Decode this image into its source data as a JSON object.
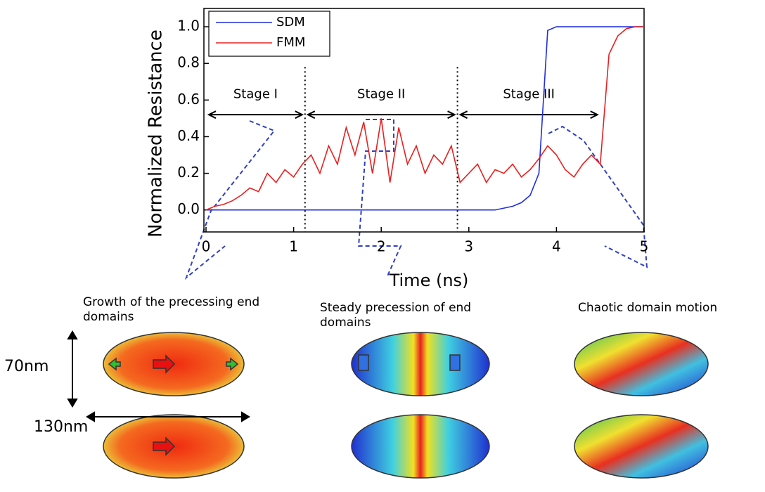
{
  "chart_data": {
    "type": "line",
    "y_label": "Normalized Resistance",
    "x_label": "Time (ns)",
    "x": [
      0,
      0.1,
      0.2,
      0.3,
      0.4,
      0.5,
      0.6,
      0.7,
      0.8,
      0.9,
      1.0,
      1.1,
      1.2,
      1.3,
      1.4,
      1.5,
      1.6,
      1.7,
      1.8,
      1.9,
      2.0,
      2.1,
      2.2,
      2.3,
      2.4,
      2.5,
      2.6,
      2.7,
      2.8,
      2.9,
      3.0,
      3.1,
      3.2,
      3.3,
      3.4,
      3.5,
      3.6,
      3.7,
      3.8,
      3.9,
      4.0,
      4.1,
      4.2,
      4.3,
      4.4,
      4.5,
      4.6,
      4.7,
      4.8,
      4.9,
      5.0
    ],
    "series": [
      {
        "name": "SDM",
        "color": "#1f2fe0",
        "values": [
          0,
          0,
          0,
          0,
          0,
          0,
          0,
          0,
          0,
          0,
          0,
          0,
          0,
          0,
          0,
          0,
          0,
          0,
          0,
          0,
          0,
          0,
          0,
          0,
          0,
          0,
          0,
          0,
          0,
          0,
          0,
          0,
          0,
          0,
          0.01,
          0.02,
          0.04,
          0.08,
          0.2,
          0.98,
          1.0,
          1.0,
          1.0,
          1.0,
          1.0,
          1.0,
          1.0,
          1.0,
          1.0,
          1.0,
          1.0
        ]
      },
      {
        "name": "FMM",
        "color": "#e82020",
        "values": [
          0,
          0.02,
          0.03,
          0.05,
          0.08,
          0.12,
          0.1,
          0.2,
          0.15,
          0.22,
          0.18,
          0.25,
          0.3,
          0.2,
          0.35,
          0.25,
          0.45,
          0.3,
          0.48,
          0.2,
          0.5,
          0.15,
          0.45,
          0.25,
          0.35,
          0.2,
          0.3,
          0.25,
          0.35,
          0.15,
          0.2,
          0.25,
          0.15,
          0.22,
          0.2,
          0.25,
          0.18,
          0.22,
          0.28,
          0.35,
          0.3,
          0.22,
          0.18,
          0.25,
          0.3,
          0.25,
          0.85,
          0.95,
          0.99,
          1.0,
          1.0
        ]
      }
    ],
    "xlim": [
      0,
      5
    ],
    "xticks": [
      0,
      1,
      2,
      3,
      4,
      5
    ],
    "ylim": [
      -0.12,
      1.1
    ],
    "yticks": [
      {
        "value": 0,
        "label": "0.0"
      },
      {
        "value": 0.2,
        "label": "0.2"
      },
      {
        "value": 0.4,
        "label": "0.4"
      },
      {
        "value": 0.6,
        "label": "0.6"
      },
      {
        "value": 0.8,
        "label": "0.8"
      },
      {
        "value": 1.0,
        "label": "1.0"
      }
    ],
    "legend": "upper left",
    "stages": [
      {
        "label": "Stage I",
        "start": 0,
        "end": 1.13
      },
      {
        "label": "Stage II",
        "start": 1.13,
        "end": 2.87
      },
      {
        "label": "Stage III",
        "start": 2.87,
        "end": 4.5
      }
    ]
  },
  "panels": [
    {
      "caption": "Growth of the precessing end domains"
    },
    {
      "caption": "Steady precession of end domains"
    },
    {
      "caption": "Chaotic domain motion"
    }
  ],
  "dimensions": {
    "height": "70nm",
    "width": "130nm"
  }
}
